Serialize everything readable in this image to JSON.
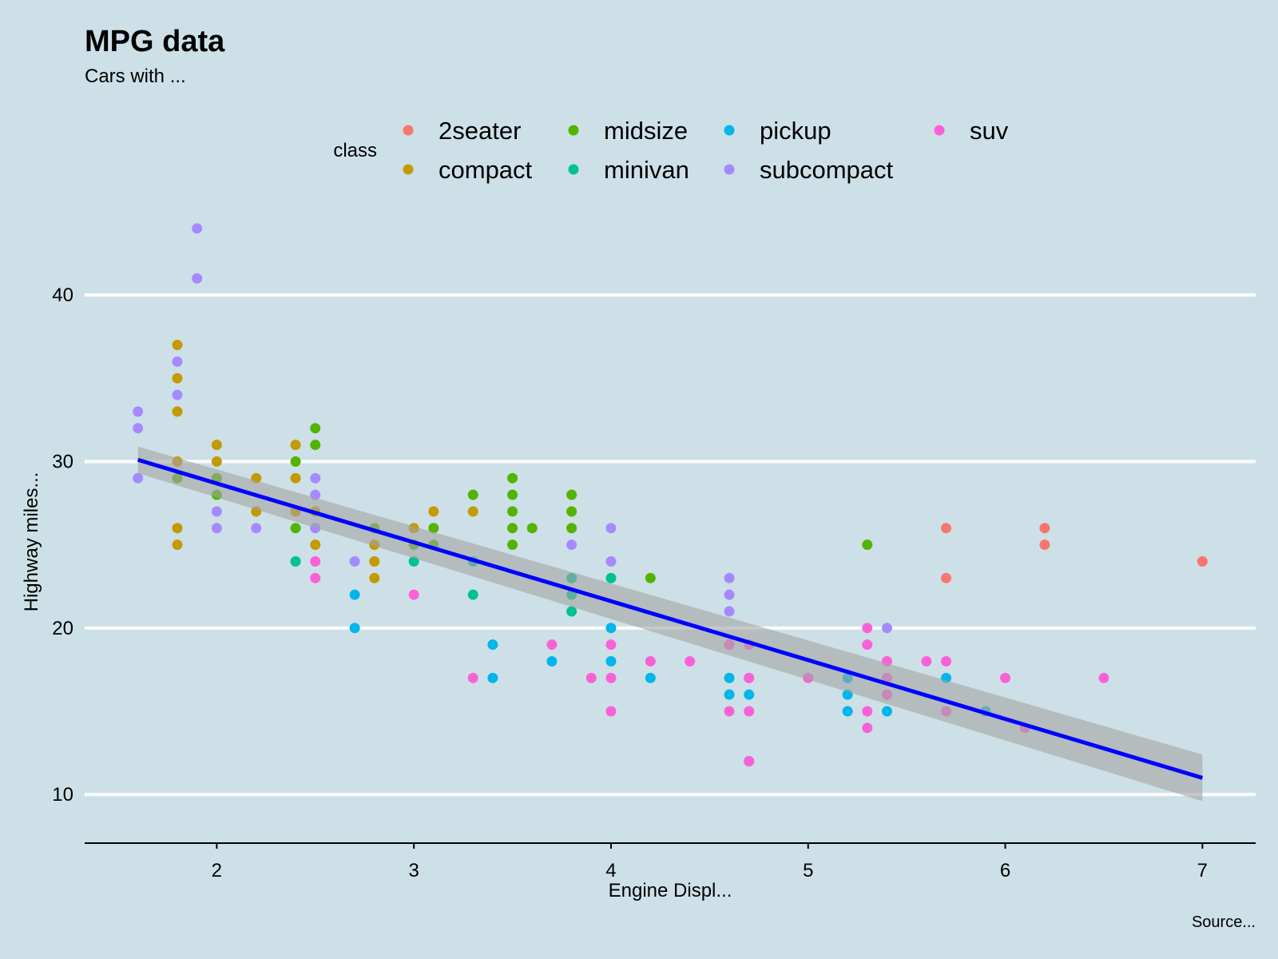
{
  "chart_data": {
    "type": "scatter",
    "title": "MPG data",
    "subtitle": "Cars with ...",
    "xlabel": "Engine Displ...",
    "ylabel": "Highway miles...",
    "caption": "Source...",
    "xlim": [
      1.33,
      7.27
    ],
    "ylim": [
      7.8,
      46.2
    ],
    "xticks": [
      "2",
      "3",
      "4",
      "5",
      "6",
      "7"
    ],
    "yticks": [
      "10",
      "20",
      "30",
      "40"
    ],
    "grid": "horizontal",
    "legend_position": "top",
    "legend_title": "class",
    "colors": {
      "background": "#cde0e7",
      "gridline": "#ffffff",
      "fit_line": "#0000ff",
      "confidence_band": "#a3a3a3"
    },
    "series": [
      {
        "name": "2seater",
        "color": "#f8766d",
        "points": [
          [
            5.7,
            26
          ],
          [
            5.7,
            23
          ],
          [
            6.2,
            26
          ],
          [
            6.2,
            25
          ],
          [
            7.0,
            24
          ]
        ]
      },
      {
        "name": "compact",
        "color": "#c49a00",
        "points": [
          [
            1.8,
            37
          ],
          [
            1.8,
            35
          ],
          [
            1.8,
            33
          ],
          [
            1.8,
            30
          ],
          [
            1.8,
            26
          ],
          [
            1.8,
            25
          ],
          [
            2.0,
            31
          ],
          [
            2.0,
            30
          ],
          [
            2.0,
            29
          ],
          [
            2.2,
            29
          ],
          [
            2.2,
            27
          ],
          [
            2.4,
            31
          ],
          [
            2.4,
            29
          ],
          [
            2.4,
            27
          ],
          [
            2.5,
            27
          ],
          [
            2.5,
            25
          ],
          [
            2.8,
            25
          ],
          [
            2.8,
            24
          ],
          [
            2.8,
            23
          ],
          [
            3.0,
            26
          ],
          [
            3.1,
            27
          ],
          [
            3.3,
            27
          ]
        ]
      },
      {
        "name": "midsize",
        "color": "#53b400",
        "points": [
          [
            1.8,
            29
          ],
          [
            2.0,
            29
          ],
          [
            2.0,
            28
          ],
          [
            2.4,
            30
          ],
          [
            2.4,
            26
          ],
          [
            2.5,
            32
          ],
          [
            2.5,
            31
          ],
          [
            2.8,
            26
          ],
          [
            3.0,
            25
          ],
          [
            3.1,
            26
          ],
          [
            3.1,
            25
          ],
          [
            3.3,
            28
          ],
          [
            3.5,
            29
          ],
          [
            3.5,
            28
          ],
          [
            3.5,
            27
          ],
          [
            3.5,
            26
          ],
          [
            3.5,
            25
          ],
          [
            3.6,
            26
          ],
          [
            3.8,
            28
          ],
          [
            3.8,
            27
          ],
          [
            3.8,
            26
          ],
          [
            4.2,
            23
          ],
          [
            5.3,
            25
          ]
        ]
      },
      {
        "name": "minivan",
        "color": "#00c094",
        "points": [
          [
            2.4,
            24
          ],
          [
            3.0,
            24
          ],
          [
            3.3,
            24
          ],
          [
            3.3,
            22
          ],
          [
            3.8,
            23
          ],
          [
            3.8,
            22
          ],
          [
            3.8,
            21
          ],
          [
            4.0,
            23
          ]
        ]
      },
      {
        "name": "pickup",
        "color": "#00b6eb",
        "points": [
          [
            2.7,
            22
          ],
          [
            2.7,
            20
          ],
          [
            3.4,
            19
          ],
          [
            3.4,
            17
          ],
          [
            3.7,
            18
          ],
          [
            4.0,
            20
          ],
          [
            4.0,
            18
          ],
          [
            4.2,
            17
          ],
          [
            4.6,
            17
          ],
          [
            4.6,
            16
          ],
          [
            4.7,
            17
          ],
          [
            4.7,
            16
          ],
          [
            4.7,
            12
          ],
          [
            5.2,
            17
          ],
          [
            5.2,
            16
          ],
          [
            5.2,
            15
          ],
          [
            5.4,
            15
          ],
          [
            5.7,
            17
          ],
          [
            5.9,
            15
          ]
        ]
      },
      {
        "name": "subcompact",
        "color": "#a58aff",
        "points": [
          [
            1.6,
            33
          ],
          [
            1.6,
            32
          ],
          [
            1.6,
            29
          ],
          [
            1.8,
            36
          ],
          [
            1.8,
            34
          ],
          [
            1.9,
            44
          ],
          [
            1.9,
            41
          ],
          [
            2.0,
            27
          ],
          [
            2.0,
            26
          ],
          [
            2.2,
            26
          ],
          [
            2.5,
            29
          ],
          [
            2.5,
            28
          ],
          [
            2.5,
            26
          ],
          [
            2.7,
            24
          ],
          [
            3.8,
            25
          ],
          [
            4.0,
            26
          ],
          [
            4.0,
            24
          ],
          [
            4.6,
            23
          ],
          [
            4.6,
            22
          ],
          [
            4.6,
            21
          ],
          [
            5.4,
            20
          ]
        ]
      },
      {
        "name": "suv",
        "color": "#fb61d7",
        "points": [
          [
            2.5,
            24
          ],
          [
            2.5,
            23
          ],
          [
            3.0,
            22
          ],
          [
            3.3,
            17
          ],
          [
            3.7,
            19
          ],
          [
            3.9,
            17
          ],
          [
            4.0,
            19
          ],
          [
            4.0,
            17
          ],
          [
            4.0,
            15
          ],
          [
            4.2,
            18
          ],
          [
            4.4,
            18
          ],
          [
            4.6,
            19
          ],
          [
            4.6,
            15
          ],
          [
            4.7,
            19
          ],
          [
            4.7,
            17
          ],
          [
            4.7,
            15
          ],
          [
            4.7,
            12
          ],
          [
            5.0,
            17
          ],
          [
            5.3,
            20
          ],
          [
            5.3,
            19
          ],
          [
            5.3,
            15
          ],
          [
            5.3,
            14
          ],
          [
            5.4,
            18
          ],
          [
            5.4,
            17
          ],
          [
            5.4,
            16
          ],
          [
            5.6,
            18
          ],
          [
            5.7,
            18
          ],
          [
            5.7,
            15
          ],
          [
            6.0,
            17
          ],
          [
            6.1,
            14
          ],
          [
            6.5,
            17
          ]
        ]
      }
    ],
    "smooth": {
      "method": "lm",
      "x": [
        1.6,
        7.0
      ],
      "y": [
        30.1,
        11.0
      ],
      "lower": [
        29.3,
        9.6
      ],
      "upper": [
        30.9,
        12.4
      ]
    }
  }
}
